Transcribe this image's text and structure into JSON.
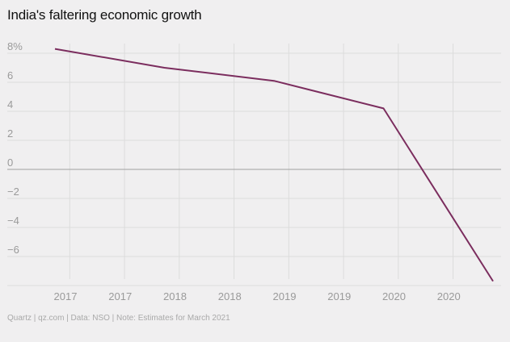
{
  "title": "India's faltering economic growth",
  "footer": "Quartz | qz.com | Data: NSO | Note: Estimates for March 2021",
  "colors": {
    "line": "#7b2d5e",
    "background": "#f0eff0",
    "grid": "#dcdcdc",
    "zero_line": "#a0a0a0"
  },
  "chart_data": {
    "type": "line",
    "title": "India's faltering economic growth",
    "ylim": [
      -8,
      8
    ],
    "yticks": [
      "8%",
      "6",
      "4",
      "2",
      "0",
      "−2",
      "−4",
      "−6"
    ],
    "x_tick_labels": [
      "2017",
      "2017",
      "2018",
      "2018",
      "2019",
      "2019",
      "2020",
      "2020"
    ],
    "series": [
      {
        "x": [
          "Mar 2017",
          "Mar 2018",
          "Mar 2019",
          "Mar 2020",
          "Mar 2021"
        ],
        "values": [
          8.3,
          7.0,
          6.1,
          4.2,
          -7.7
        ]
      }
    ],
    "grid": true
  }
}
